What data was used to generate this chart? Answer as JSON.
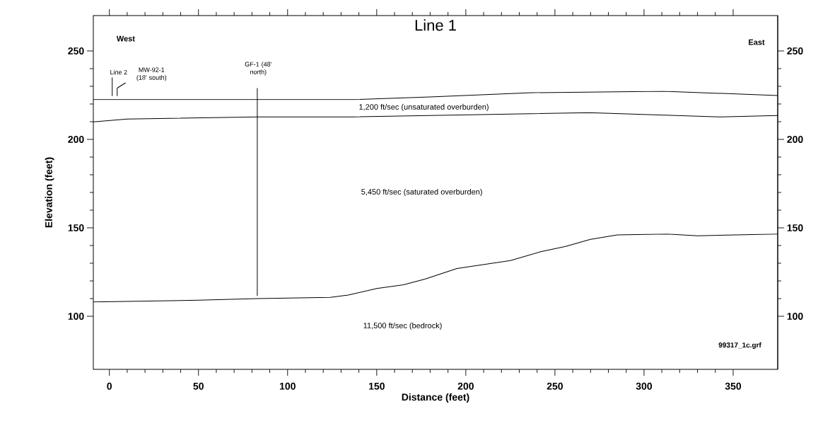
{
  "chart_data": {
    "type": "line",
    "title": "Line 1",
    "xlabel": "Distance (feet)",
    "ylabel": "Elevation (feet)",
    "xlim": [
      -9,
      375
    ],
    "xticks": [
      0,
      50,
      100,
      150,
      200,
      250,
      300,
      350
    ],
    "ylim": [
      70,
      270
    ],
    "yticks": [
      100,
      150,
      200,
      250
    ],
    "y2lim": [
      70,
      270
    ],
    "y2ticks": [
      100,
      150,
      200,
      250
    ],
    "marker": "none",
    "line_style": "solid",
    "series": [
      {
        "color": "#000000",
        "x": [
          -9,
          137,
          180,
          237,
          311,
          375
        ],
        "values": [
          222.5,
          222.5,
          224,
          226.4,
          227.2,
          224.8
        ]
      },
      {
        "color": "#000000",
        "x": [
          -9,
          10,
          83,
          137,
          269,
          343,
          375
        ],
        "values": [
          209.9,
          211.5,
          212.7,
          212.7,
          215.1,
          212.7,
          213.5
        ]
      },
      {
        "color": "#000000",
        "x": [
          -9,
          50,
          83,
          124,
          134,
          150,
          165,
          177,
          195,
          225,
          242,
          256,
          270,
          285,
          313,
          330,
          375
        ],
        "values": [
          108.1,
          109.1,
          110,
          110.7,
          112,
          115.7,
          117.8,
          121,
          127,
          131.5,
          136.5,
          139.5,
          143.5,
          146,
          146.5,
          145.5,
          146.5
        ]
      },
      {
        "color": "#000000",
        "x": [
          83,
          83
        ],
        "values": [
          229,
          111.5
        ]
      },
      {
        "color": "#000000",
        "x": [
          1.6,
          1.6
        ],
        "values": [
          224.5,
          235
        ]
      },
      {
        "color": "#000000",
        "x": [
          4.4,
          4.4,
          9.1
        ],
        "values": [
          224.5,
          229,
          232
        ]
      }
    ],
    "annotations": [
      "West",
      "East",
      "99317_1c.grf",
      "Line 2",
      "MW-92-1 (18' south)",
      "GF-1 (48' north)",
      "1,200 ft/sec (unsaturated overburden)",
      "5,450 ft/sec (saturated overburden)",
      "11,500 ft/sec (bedrock)"
    ]
  }
}
